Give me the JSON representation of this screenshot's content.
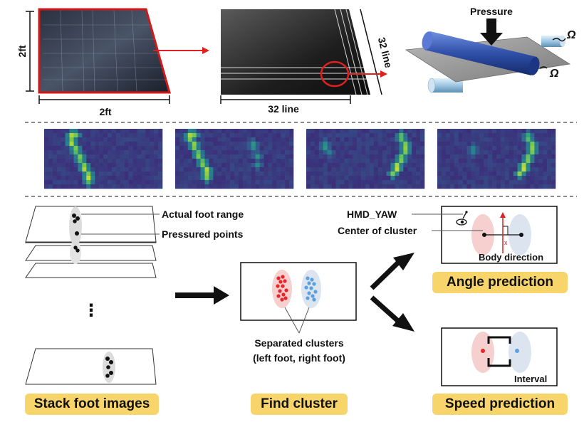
{
  "sensor": {
    "mat_side_label": "2ft",
    "mat_bottom_label": "2ft",
    "grid_bottom_label": "32 line",
    "grid_side_label": "32 line",
    "pressure_label": "Pressure",
    "ohm_label_top": "Ω",
    "ohm_label_bottom": "Ω"
  },
  "heatmaps": {
    "count": 4
  },
  "stack": {
    "actual_foot_range": "Actual foot range",
    "pressured_points": "Pressured points",
    "ellipsis": "⋮"
  },
  "cluster": {
    "caption_line1": "Separated clusters",
    "caption_line2": "(left foot, right foot)"
  },
  "angle": {
    "hmd_yaw": "HMD_YAW",
    "center_of_cluster": "Center of cluster",
    "body_direction": "Body direction"
  },
  "speed": {
    "interval": "Interval"
  },
  "badges": {
    "stack": "Stack foot images",
    "find": "Find cluster",
    "angle": "Angle prediction",
    "speed": "Speed prediction"
  },
  "colors": {
    "accent_red": "#e02020",
    "badge_yellow": "#f7d56b",
    "left_cluster": "#e8262a",
    "right_cluster": "#5aa0e0",
    "roller_blue": "#2f4fa8",
    "heatmap_bg": "#3b2f7a"
  }
}
